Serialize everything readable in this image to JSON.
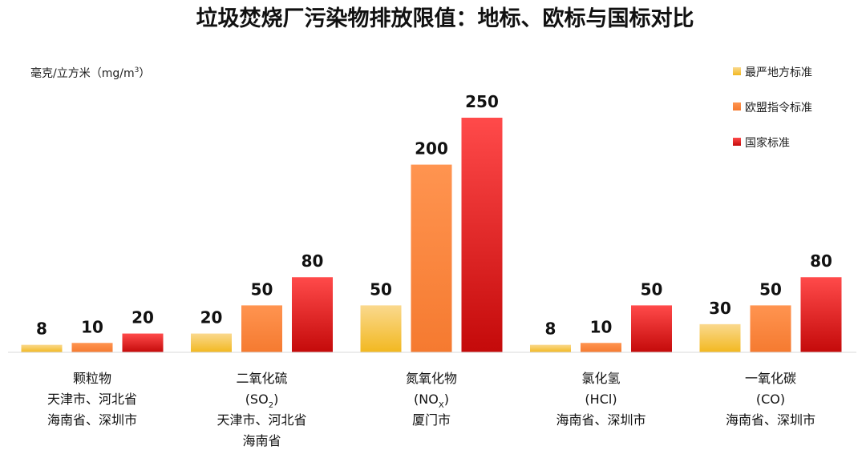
{
  "chart_data": {
    "type": "bar",
    "title": "垃圾焚烧厂污染物排放限值：地标、欧标与国标对比",
    "ylabel": {
      "text": "毫克/立方米（mg/m",
      "sup": "3",
      "close": "）"
    },
    "ylim": [
      0,
      260
    ],
    "legend_position": "top-right",
    "categories": [
      {
        "lines": [
          {
            "text": "颗粒物"
          },
          {
            "text": "天津市、河北省"
          },
          {
            "text": "海南省、深圳市"
          }
        ]
      },
      {
        "lines": [
          {
            "text": "二氧化硫"
          },
          {
            "text": "(SO",
            "sub": "2",
            "tail": ")"
          },
          {
            "text": "天津市、河北省"
          },
          {
            "text": "海南省"
          }
        ]
      },
      {
        "lines": [
          {
            "text": "氮氧化物"
          },
          {
            "text": "(NO",
            "sub": "X",
            "tail": ")"
          },
          {
            "text": "厦门市"
          }
        ]
      },
      {
        "lines": [
          {
            "text": "氯化氢"
          },
          {
            "text": "(HCl)"
          },
          {
            "text": "海南省、深圳市"
          }
        ]
      },
      {
        "lines": [
          {
            "text": "一氧化碳"
          },
          {
            "text": "(CO)"
          },
          {
            "text": "海南省、深圳市"
          }
        ]
      }
    ],
    "series": [
      {
        "name": "最严地方标准",
        "values": [
          8,
          20,
          50,
          8,
          30
        ],
        "color_top": "#fad98e",
        "color_bottom": "#f2b820"
      },
      {
        "name": "欧盟指令标准",
        "values": [
          10,
          50,
          200,
          10,
          50
        ],
        "color_top": "#ff9450",
        "color_bottom": "#f57a30"
      },
      {
        "name": "国家标准",
        "values": [
          20,
          80,
          250,
          50,
          80
        ],
        "color_top": "#ff4a4a",
        "color_bottom": "#c40a0a"
      }
    ],
    "data_labels": [
      [
        "8",
        "20",
        "50",
        "8",
        "30"
      ],
      [
        "10",
        "50",
        "200",
        "10",
        "50"
      ],
      [
        "20",
        "80",
        "250",
        "50",
        "80"
      ]
    ]
  }
}
